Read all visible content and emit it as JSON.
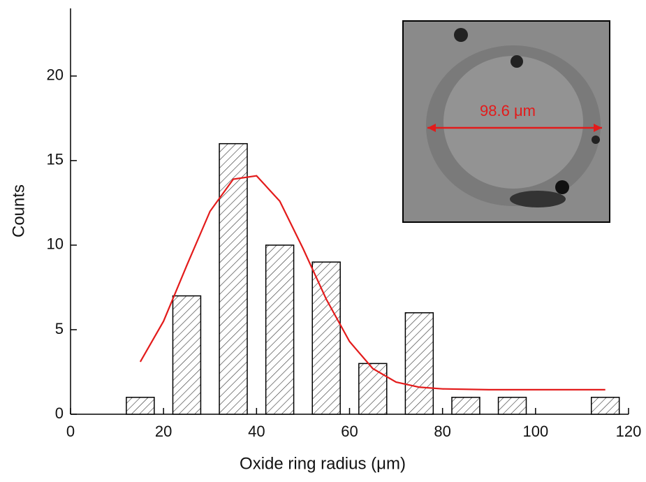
{
  "chart_data": {
    "type": "bar",
    "x_label": "Oxide ring radius (μm)",
    "y_label": "Counts",
    "x": [
      15,
      25,
      35,
      45,
      55,
      65,
      75,
      85,
      95,
      115
    ],
    "values": [
      1,
      7,
      16,
      10,
      9,
      3,
      6,
      1,
      1,
      1
    ],
    "color": "#000000",
    "fit": {
      "color": "#e31b1b",
      "x": [
        15,
        20,
        25,
        30,
        35,
        40,
        45,
        50,
        55,
        60,
        65,
        70,
        75,
        80,
        90,
        100,
        115
      ],
      "values": [
        3.1,
        5.5,
        8.8,
        12,
        13.9,
        14.1,
        12.6,
        9.8,
        6.8,
        4.3,
        2.7,
        1.9,
        1.6,
        1.5,
        1.45,
        1.45,
        1.45
      ]
    },
    "inset_label": "98.6 μm",
    "xlim": [
      0,
      120
    ],
    "xticks": [
      0,
      20,
      40,
      60,
      80,
      100,
      120
    ],
    "ylim": [
      0,
      24
    ],
    "yticks": [
      0,
      5,
      10,
      15,
      20
    ]
  }
}
